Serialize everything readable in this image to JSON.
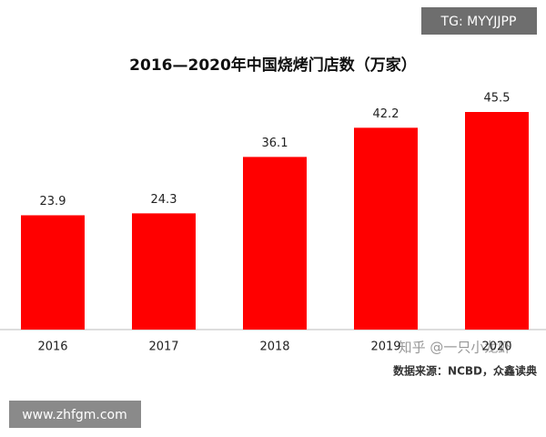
{
  "chart_data": {
    "type": "bar",
    "title": "2016—2020年中国烧烤门店数（万家）",
    "categories": [
      "2016",
      "2017",
      "2018",
      "2019",
      "2020"
    ],
    "values": [
      23.9,
      24.3,
      36.1,
      42.2,
      45.5
    ],
    "color": "#ff0000",
    "source": "数据来源：NCBD，众鑫读典",
    "watermarks": [
      "TG: MYYJJPP",
      "www.zhfgm.com",
      "知乎 @一只小龙虾"
    ]
  }
}
